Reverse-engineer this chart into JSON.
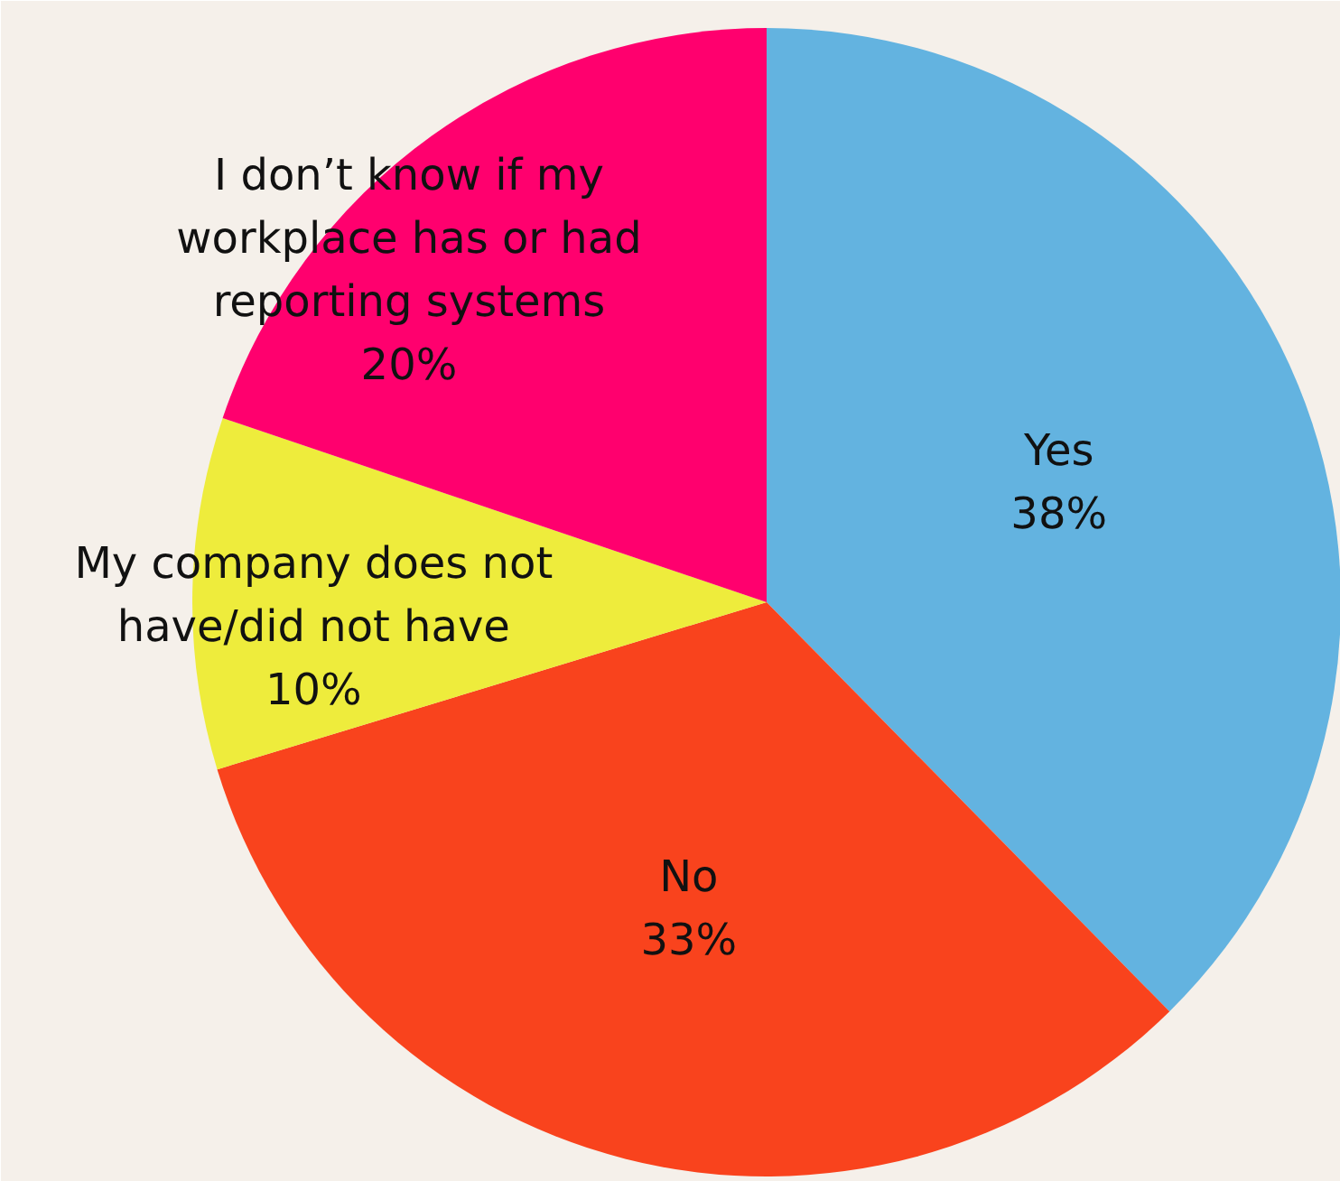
{
  "chart_data": {
    "type": "pie",
    "categories": [
      "Yes",
      "No",
      "My company does not\nhave/did not have",
      "I don’t know if my\nworkplace has or had\nreporting systems"
    ],
    "values": [
      38,
      33,
      10,
      20
    ],
    "value_labels": [
      "38%",
      "33%",
      "10%",
      "20%"
    ],
    "colors": [
      "#63b3e0",
      "#f9431d",
      "#eeec3c",
      "#ff006e"
    ],
    "legend": false
  }
}
